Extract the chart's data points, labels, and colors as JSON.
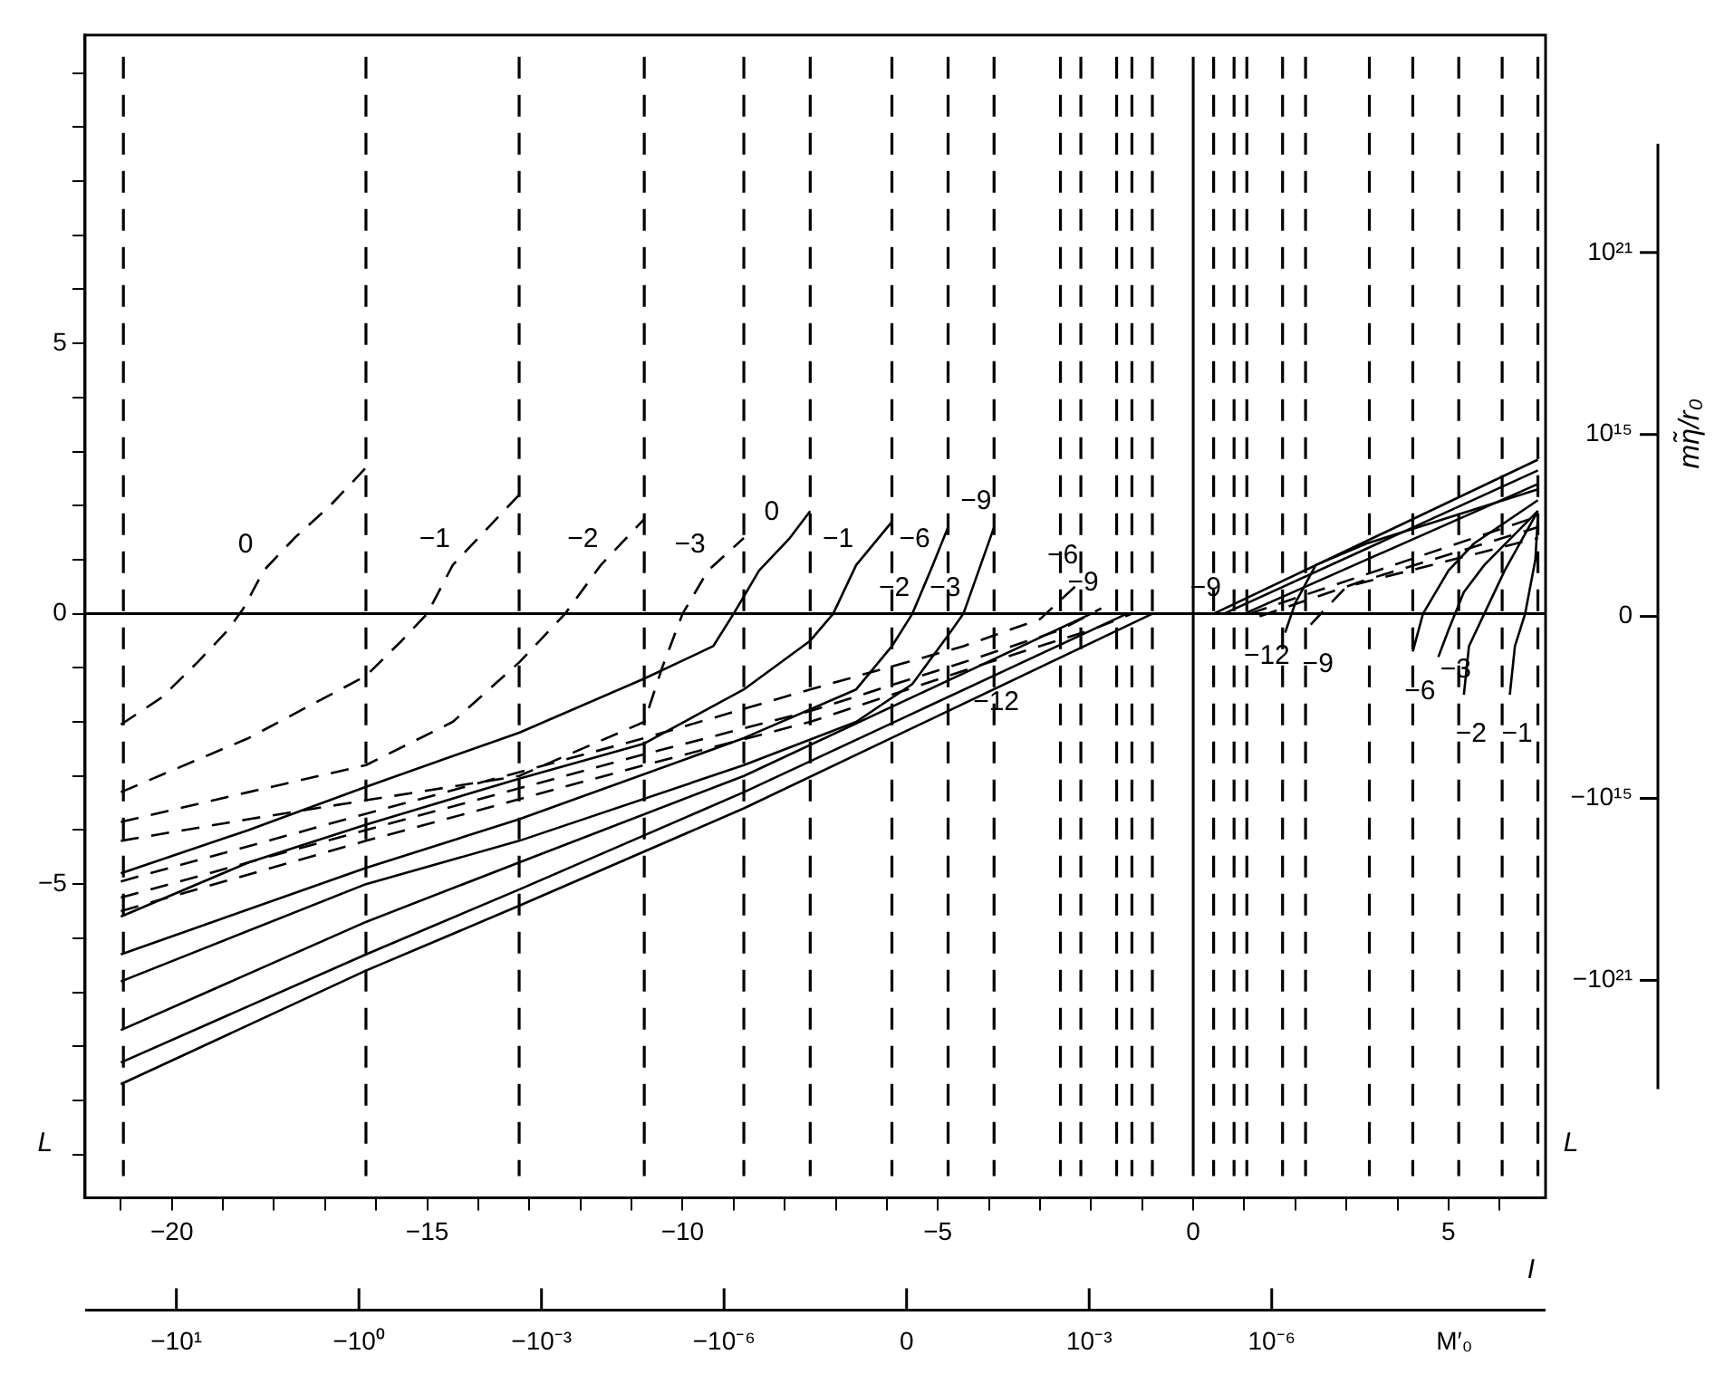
{
  "chart_data": {
    "type": "line",
    "xlabel": "I",
    "ylabel": "L",
    "y2label": "mη̃/r₀",
    "xlim": [
      -21.7,
      6.9
    ],
    "ylim": [
      -10.8,
      10.7
    ],
    "xticks": [
      {
        "value": -21,
        "label": null
      },
      -20,
      {
        "value": -19,
        "label": null
      },
      {
        "value": -18,
        "label": null
      },
      {
        "value": -17,
        "label": null
      },
      {
        "value": -16,
        "label": null
      },
      -15,
      {
        "value": -14,
        "label": null
      },
      {
        "value": -13,
        "label": null
      },
      {
        "value": -12,
        "label": null
      },
      {
        "value": -11,
        "label": null
      },
      -10,
      {
        "value": -9,
        "label": null
      },
      {
        "value": -8,
        "label": null
      },
      {
        "value": -7,
        "label": null
      },
      {
        "value": -6,
        "label": null
      },
      -5,
      {
        "value": -4,
        "label": null
      },
      {
        "value": -3,
        "label": null
      },
      {
        "value": -2,
        "label": null
      },
      {
        "value": -1,
        "label": null
      },
      0,
      {
        "value": 1,
        "label": null
      },
      {
        "value": 2,
        "label": null
      },
      {
        "value": 3,
        "label": null
      },
      {
        "value": 4,
        "label": null
      },
      5,
      {
        "value": 6,
        "label": null
      }
    ],
    "yticks": [
      {
        "value": -10,
        "label": null
      },
      {
        "value": -9,
        "label": null
      },
      {
        "value": -8,
        "label": null
      },
      {
        "value": -7,
        "label": null
      },
      {
        "value": -6,
        "label": null
      },
      -5,
      {
        "value": -4,
        "label": null
      },
      {
        "value": -3,
        "label": null
      },
      {
        "value": -2,
        "label": null
      },
      {
        "value": -1,
        "label": null
      },
      0,
      {
        "value": 1,
        "label": null
      },
      {
        "value": 2,
        "label": null
      },
      {
        "value": 3,
        "label": null
      },
      {
        "value": 4,
        "label": null
      },
      5,
      {
        "value": 6,
        "label": null
      },
      {
        "value": 7,
        "label": null
      },
      {
        "value": 8,
        "label": null
      },
      {
        "value": 9,
        "label": null
      },
      {
        "value": 10,
        "label": null
      }
    ],
    "grid": false,
    "legend": false,
    "marker": "none",
    "series": [
      {
        "color": "#000000",
        "line_style": "dashed",
        "x": [
          -21,
          -20.2,
          -19.5,
          -18.9,
          -18.6,
          -18.2,
          -17.6,
          -16.9,
          -16.2
        ],
        "values": [
          -2.05,
          -1.55,
          -0.9,
          -0.3,
          0.1,
          0.8,
          1.4,
          2.0,
          2.7
        ]
      },
      {
        "color": "#000000",
        "line_style": "dashed",
        "x": [
          -21,
          -18.5,
          -16.2,
          -15.5,
          -15.0,
          -14.5,
          -13.8,
          -13.2
        ],
        "values": [
          -3.3,
          -2.3,
          -1.15,
          -0.5,
          0,
          0.9,
          1.6,
          2.2
        ]
      },
      {
        "color": "#000000",
        "line_style": "dashed",
        "x": [
          -21,
          -18.5,
          -16.2,
          -14.5,
          -13.2,
          -12.3,
          -11.6,
          -10.75
        ],
        "values": [
          -3.85,
          -3.3,
          -2.8,
          -2.0,
          -0.9,
          0,
          0.9,
          1.75
        ]
      },
      {
        "color": "#000000",
        "line_style": "dashed",
        "x": [
          -21,
          -18.5,
          -16.2,
          -13.2,
          -10.75,
          -10.4,
          -10.0,
          -9.5,
          -8.8
        ],
        "values": [
          -4.2,
          -3.8,
          -3.45,
          -3.0,
          -2.0,
          -1.0,
          0,
          0.8,
          1.4
        ]
      },
      {
        "color": "#000000",
        "line_style": "solid",
        "x": [
          -21,
          -18.5,
          -16.2,
          -13.2,
          -10.75,
          -9.4,
          -9.0,
          -8.5,
          -7.9,
          -7.5
        ],
        "values": [
          -4.8,
          -4.0,
          -3.2,
          -2.2,
          -1.2,
          -0.6,
          0,
          0.8,
          1.4,
          1.9
        ]
      },
      {
        "color": "#000000",
        "line_style": "solid",
        "x": [
          -21,
          -18.5,
          -16.2,
          -13.2,
          -10.75,
          -8.8,
          -7.5,
          -7.05,
          -6.6,
          -5.9
        ],
        "values": [
          -5.6,
          -4.6,
          -3.9,
          -3.05,
          -2.4,
          -1.4,
          -0.5,
          0,
          0.9,
          1.7
        ]
      },
      {
        "color": "#000000",
        "line_style": "solid",
        "x": [
          -21,
          -16.2,
          -13.2,
          -8.8,
          -6.6,
          -5.9,
          -5.5,
          -5.1,
          -4.8
        ],
        "values": [
          -6.3,
          -4.7,
          -3.8,
          -2.3,
          -1.4,
          -0.6,
          0,
          0.9,
          1.6
        ]
      },
      {
        "color": "#000000",
        "line_style": "solid",
        "x": [
          -21,
          -16.2,
          -13.2,
          -8.8,
          -6.6,
          -5.5,
          -4.8,
          -4.5,
          -4.2,
          -3.9
        ],
        "values": [
          -6.8,
          -5.0,
          -4.2,
          -2.8,
          -2.0,
          -1.3,
          -0.4,
          0,
          0.8,
          1.6
        ]
      },
      {
        "color": "#000000",
        "line_style": "solid",
        "x": [
          -21,
          -16.2,
          -13.2,
          -8.8,
          -2.0
        ],
        "values": [
          -7.7,
          -5.7,
          -4.6,
          -3.0,
          0
        ]
      },
      {
        "color": "#000000",
        "line_style": "solid",
        "x": [
          -21,
          -16.2,
          -13.2,
          -8.8,
          -1.3
        ],
        "values": [
          -8.3,
          -6.3,
          -5.1,
          -3.3,
          0
        ]
      },
      {
        "color": "#000000",
        "line_style": "solid",
        "x": [
          -21,
          -16.2,
          -13.2,
          -8.8,
          -0.8
        ],
        "values": [
          -8.7,
          -6.6,
          -5.4,
          -3.6,
          0
        ]
      },
      {
        "color": "#000000",
        "line_style": "dashed",
        "x": [
          -21,
          -16.2,
          -10.75,
          -7.5,
          -4.5,
          -3.0,
          -2.2
        ],
        "values": [
          -4.95,
          -3.7,
          -2.3,
          -1.4,
          -0.6,
          -0.1,
          0.6
        ]
      },
      {
        "color": "#000000",
        "line_style": "dashed",
        "x": [
          -21,
          -16.2,
          -10.75,
          -7.5,
          -4.5,
          -2.6,
          -1.8
        ],
        "values": [
          -5.25,
          -4.0,
          -2.6,
          -1.8,
          -0.9,
          -0.3,
          0.1
        ]
      },
      {
        "color": "#000000",
        "line_style": "dashed",
        "x": [
          -21,
          -16.2,
          -10.75,
          -7.5,
          -4.0,
          -2.0,
          -1.2
        ],
        "values": [
          -5.5,
          -4.2,
          -2.8,
          -2.0,
          -0.9,
          -0.3,
          0
        ]
      },
      {
        "color": "#000000",
        "line_style": "solid",
        "x": [
          0.4,
          6.75
        ],
        "values": [
          0,
          2.85
        ]
      },
      {
        "color": "#000000",
        "line_style": "solid",
        "x": [
          0.6,
          6.75
        ],
        "values": [
          0,
          2.65
        ]
      },
      {
        "color": "#000000",
        "line_style": "solid",
        "x": [
          1.0,
          6.75
        ],
        "values": [
          0,
          2.4
        ]
      },
      {
        "color": "#000000",
        "line_style": "dashed",
        "x": [
          1.1,
          6.75
        ],
        "values": [
          0,
          1.8
        ]
      },
      {
        "color": "#000000",
        "line_style": "dashed",
        "x": [
          1.3,
          3.3,
          6.75
        ],
        "values": [
          -0.05,
          0.6,
          1.6
        ]
      },
      {
        "color": "#000000",
        "line_style": "dashed",
        "x": [
          2.3,
          3.0,
          6.75
        ],
        "values": [
          -0.2,
          0.5,
          1.4
        ]
      },
      {
        "color": "#000000",
        "line_style": "solid",
        "x": [
          1.8,
          2.0,
          2.4,
          3.4,
          6.75
        ],
        "values": [
          -0.35,
          0.2,
          0.9,
          1.3,
          2.3
        ]
      },
      {
        "color": "#000000",
        "line_style": "solid",
        "x": [
          4.3,
          4.5,
          5.0,
          5.5,
          6.75
        ],
        "values": [
          -0.7,
          0,
          0.8,
          1.3,
          2.1
        ]
      },
      {
        "color": "#000000",
        "line_style": "solid",
        "x": [
          4.8,
          5.0,
          5.3,
          5.7,
          6.75
        ],
        "values": [
          -0.8,
          -0.3,
          0.4,
          0.9,
          1.9
        ]
      },
      {
        "color": "#000000",
        "line_style": "solid",
        "x": [
          5.3,
          5.4,
          5.7,
          6.1,
          6.75
        ],
        "values": [
          -1.5,
          -0.6,
          0,
          0.8,
          1.9
        ]
      },
      {
        "color": "#000000",
        "line_style": "solid",
        "x": [
          6.2,
          6.3,
          6.5,
          6.7,
          6.75
        ],
        "values": [
          -1.5,
          -0.6,
          0,
          1.0,
          1.8
        ]
      }
    ],
    "ref_lines": [
      {
        "axis": "y",
        "value": 0,
        "line_style": "solid",
        "color": "#000000"
      },
      {
        "axis": "x",
        "value": 0,
        "line_style": "solid",
        "color": "#000000"
      },
      {
        "axis": "x",
        "value": -20.95,
        "line_style": "dashed",
        "color": "#000000"
      },
      {
        "axis": "x",
        "value": -16.2,
        "line_style": "dashed",
        "color": "#000000"
      },
      {
        "axis": "x",
        "value": -13.2,
        "line_style": "dashed",
        "color": "#000000"
      },
      {
        "axis": "x",
        "value": -10.75,
        "line_style": "dashed",
        "color": "#000000"
      },
      {
        "axis": "x",
        "value": -8.8,
        "line_style": "dashed",
        "color": "#000000"
      },
      {
        "axis": "x",
        "value": -7.5,
        "line_style": "dashed",
        "color": "#000000"
      },
      {
        "axis": "x",
        "value": -5.9,
        "line_style": "dashed",
        "color": "#000000"
      },
      {
        "axis": "x",
        "value": -4.8,
        "line_style": "dashed",
        "color": "#000000"
      },
      {
        "axis": "x",
        "value": -3.9,
        "line_style": "dashed",
        "color": "#000000"
      },
      {
        "axis": "x",
        "value": -2.6,
        "line_style": "dashed",
        "color": "#000000"
      },
      {
        "axis": "x",
        "value": -2.2,
        "line_style": "dashed",
        "color": "#000000"
      },
      {
        "axis": "x",
        "value": -1.5,
        "line_style": "dashed",
        "color": "#000000"
      },
      {
        "axis": "x",
        "value": -1.2,
        "line_style": "dashed",
        "color": "#000000"
      },
      {
        "axis": "x",
        "value": -0.8,
        "line_style": "dashed",
        "color": "#000000"
      },
      {
        "axis": "x",
        "value": 0.4,
        "line_style": "dashed",
        "color": "#000000"
      },
      {
        "axis": "x",
        "value": 0.8,
        "line_style": "dashed",
        "color": "#000000"
      },
      {
        "axis": "x",
        "value": 1.05,
        "line_style": "dashed",
        "color": "#000000"
      },
      {
        "axis": "x",
        "value": 1.75,
        "line_style": "dashed",
        "color": "#000000"
      },
      {
        "axis": "x",
        "value": 2.2,
        "line_style": "dashed",
        "color": "#000000"
      },
      {
        "axis": "x",
        "value": 3.45,
        "line_style": "dashed",
        "color": "#000000"
      },
      {
        "axis": "x",
        "value": 4.3,
        "line_style": "dashed",
        "color": "#000000"
      },
      {
        "axis": "x",
        "value": 5.2,
        "line_style": "dashed",
        "color": "#000000"
      },
      {
        "axis": "x",
        "value": 6.05,
        "line_style": "dashed",
        "color": "#000000"
      },
      {
        "axis": "x",
        "value": 6.75,
        "line_style": "dashed",
        "color": "#000000"
      }
    ],
    "annotations": [
      {
        "text": "0",
        "x": -18.2,
        "y": 0.8
      },
      {
        "text": "−1",
        "x": -14.5,
        "y": 0.9
      },
      {
        "text": "−2",
        "x": -11.6,
        "y": 0.9
      },
      {
        "text": "−3",
        "x": -9.5,
        "y": 0.8
      },
      {
        "text": "0",
        "x": -7.9,
        "y": 1.4
      },
      {
        "text": "−1",
        "x": -6.6,
        "y": 0.9
      },
      {
        "text": "−6",
        "x": -5.1,
        "y": 0.9
      },
      {
        "text": "−2",
        "x": -5.5,
        "y": 0
      },
      {
        "text": "−3",
        "x": -4.5,
        "y": 0
      },
      {
        "text": "−9",
        "x": -3.9,
        "y": 1.6
      },
      {
        "text": "−6",
        "x": -2.2,
        "y": 0.6
      },
      {
        "text": "−9",
        "x": -1.8,
        "y": 0.1
      },
      {
        "text": "−12",
        "x": -4.0,
        "y": -0.9
      },
      {
        "text": "−9",
        "x": 0.6,
        "y": 0
      },
      {
        "text": "−12",
        "x": 1.3,
        "y": -0.05
      },
      {
        "text": "−9",
        "x": 2.3,
        "y": -0.2
      },
      {
        "text": "−6",
        "x": 4.3,
        "y": -0.7
      },
      {
        "text": "−3",
        "x": 5.0,
        "y": -0.3
      },
      {
        "text": "−2",
        "x": 5.3,
        "y": -1.5
      },
      {
        "text": "−1",
        "x": 6.2,
        "y": -1.5
      },
      "10²¹",
      "10¹⁵",
      "0",
      "−10¹⁵",
      "−10²¹",
      "−10¹",
      "−10⁰",
      "−10⁻³",
      "−10⁻⁶",
      "0",
      "10⁻³",
      "10⁻⁶",
      "M′₀"
    ]
  }
}
